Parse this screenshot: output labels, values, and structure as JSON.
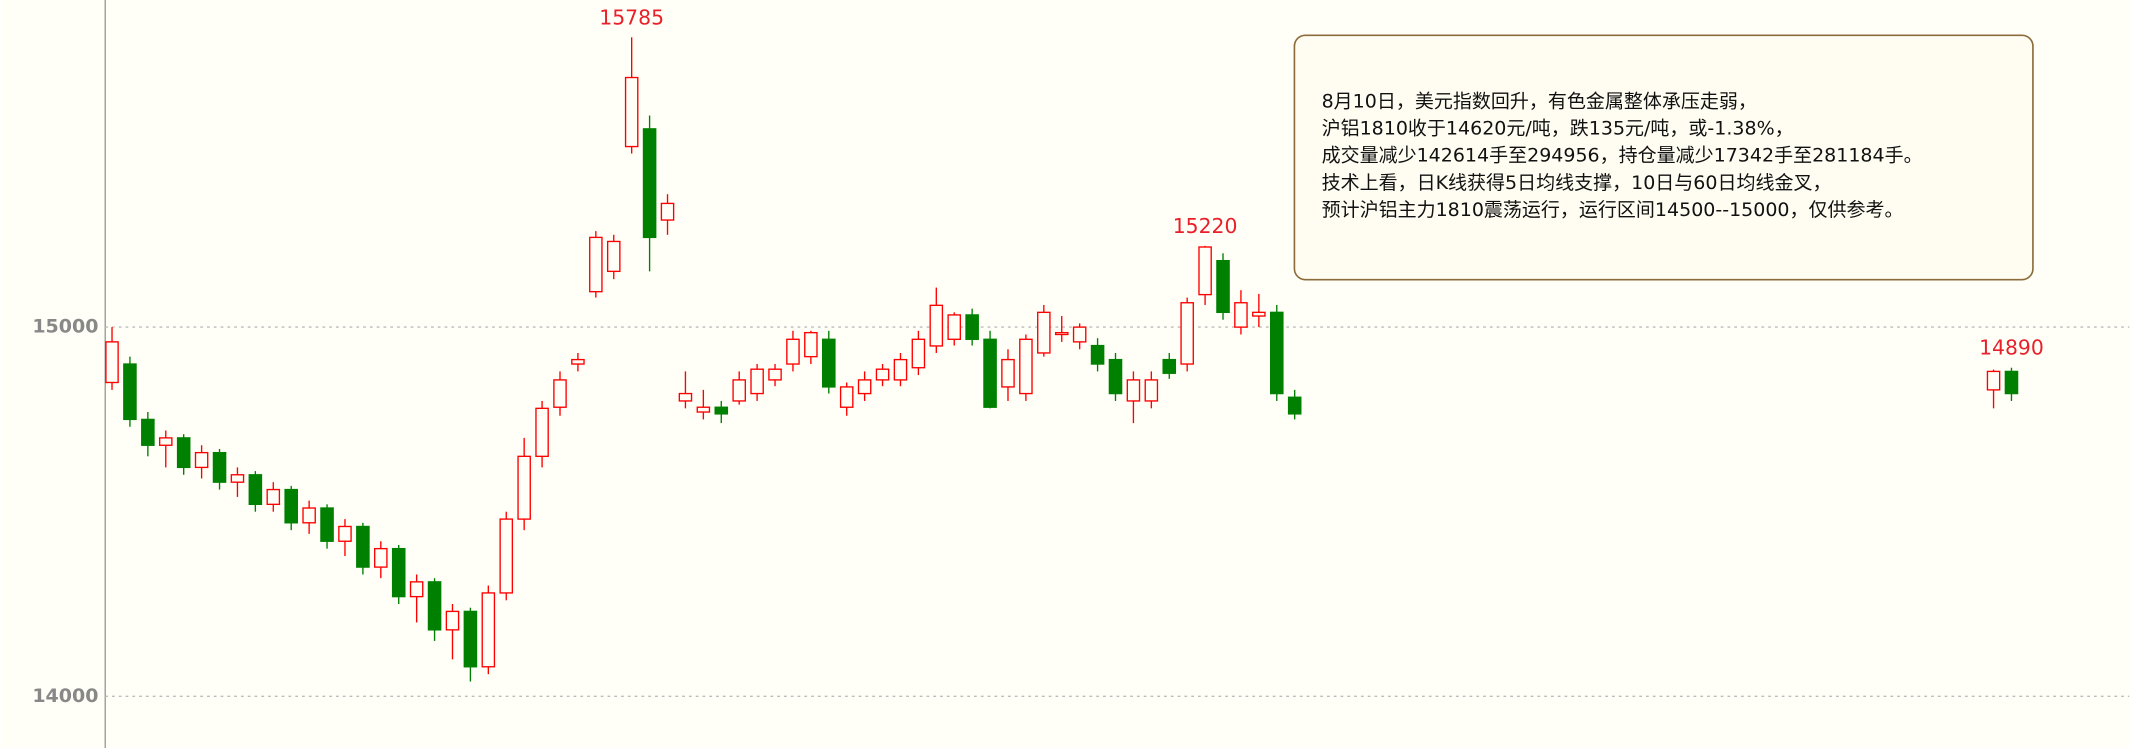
{
  "chart_data": {
    "type": "candlestick",
    "open": [
      14850,
      14900,
      14750,
      14680,
      14700,
      14620,
      14660,
      14580,
      14600,
      14520,
      14560,
      14470,
      14510,
      14420,
      14460,
      14350,
      14400,
      14270,
      14310,
      14180,
      14230,
      14080,
      14280,
      14480,
      14650,
      14783,
      14900,
      15096,
      15151,
      15489,
      15537,
      15290,
      14800,
      14770,
      14783,
      14800,
      14820,
      14857,
      14900,
      14920,
      14967,
      14783,
      14820,
      14857,
      14857,
      14890,
      14949,
      14967,
      15033,
      14967,
      14838,
      14820,
      14930,
      14980,
      14960,
      14950,
      14912,
      14800,
      14800,
      14912,
      14900,
      15088,
      15180,
      15000,
      15030,
      15040,
      14810,
      null,
      null,
      null,
      null,
      null,
      null,
      null,
      null,
      null,
      null,
      null,
      null,
      null,
      null,
      null,
      null,
      null,
      null,
      null,
      null,
      null,
      null,
      null,
      null,
      null,
      null,
      null,
      null,
      null,
      null,
      null,
      null,
      null,
      null,
      null,
      null,
      null,
      null,
      14830,
      14880
    ],
    "high": [
      15000,
      14920,
      14770,
      14720,
      14710,
      14680,
      14670,
      14620,
      14610,
      14580,
      14570,
      14530,
      14520,
      14480,
      14470,
      14420,
      14410,
      14330,
      14320,
      14250,
      14240,
      14300,
      14500,
      14700,
      14800,
      14880,
      14930,
      15260,
      15250,
      15785,
      15573,
      15360,
      14880,
      14830,
      14800,
      14880,
      14900,
      14900,
      14990,
      14990,
      14990,
      14850,
      14880,
      14900,
      14930,
      14990,
      15107,
      15040,
      15050,
      14990,
      14940,
      14980,
      15060,
      15030,
      15010,
      14970,
      14930,
      14880,
      14880,
      14930,
      15080,
      15220,
      15200,
      15100,
      15090,
      15060,
      14830,
      null,
      null,
      null,
      null,
      null,
      null,
      null,
      null,
      null,
      null,
      null,
      null,
      null,
      null,
      null,
      null,
      null,
      null,
      null,
      null,
      null,
      null,
      null,
      null,
      null,
      null,
      null,
      null,
      null,
      null,
      null,
      null,
      null,
      null,
      null,
      null,
      null,
      null,
      14885,
      14890
    ],
    "low": [
      14830,
      14730,
      14650,
      14620,
      14600,
      14590,
      14560,
      14540,
      14500,
      14500,
      14450,
      14440,
      14400,
      14380,
      14330,
      14320,
      14250,
      14200,
      14150,
      14100,
      14040,
      14060,
      14260,
      14450,
      14620,
      14760,
      14880,
      15080,
      15130,
      15470,
      15151,
      15250,
      14780,
      14750,
      14740,
      14790,
      14800,
      14840,
      14880,
      14900,
      14820,
      14760,
      14800,
      14840,
      14840,
      14870,
      14930,
      14950,
      14950,
      14780,
      14800,
      14800,
      14920,
      14960,
      14940,
      14880,
      14800,
      14740,
      14780,
      14860,
      14880,
      15060,
      15020,
      14980,
      15000,
      14800,
      14750,
      null,
      null,
      null,
      null,
      null,
      null,
      null,
      null,
      null,
      null,
      null,
      null,
      null,
      null,
      null,
      null,
      null,
      null,
      null,
      null,
      null,
      null,
      null,
      null,
      null,
      null,
      null,
      null,
      null,
      null,
      null,
      null,
      null,
      null,
      null,
      null,
      null,
      null,
      14780,
      14800
    ],
    "close": [
      14960,
      14750,
      14680,
      14700,
      14620,
      14660,
      14580,
      14600,
      14520,
      14560,
      14470,
      14510,
      14420,
      14460,
      14350,
      14400,
      14270,
      14310,
      14180,
      14230,
      14080,
      14280,
      14480,
      14650,
      14780,
      14857,
      14912,
      15243,
      15232,
      15676,
      15243,
      15335,
      14820,
      14783,
      14765,
      14857,
      14886,
      14886,
      14967,
      14985,
      14838,
      14838,
      14857,
      14886,
      14912,
      14967,
      15059,
      15033,
      14967,
      14783,
      14912,
      14967,
      15040,
      14985,
      15000,
      14900,
      14820,
      14857,
      14857,
      14875,
      15066,
      15217,
      15040,
      15066,
      15040,
      14820,
      14765,
      null,
      null,
      null,
      null,
      null,
      null,
      null,
      null,
      null,
      null,
      null,
      null,
      null,
      null,
      null,
      null,
      null,
      null,
      null,
      null,
      null,
      null,
      null,
      null,
      null,
      null,
      null,
      null,
      null,
      null,
      null,
      null,
      null,
      null,
      null,
      null,
      null,
      null,
      14880,
      14820
    ],
    "up_color": "#ff0000",
    "down_color": "#008000",
    "ylim": [
      13860,
      15886
    ],
    "yticks": [
      14000,
      15000
    ],
    "grid": true,
    "annotation": [
      "8月10日，美元指数回升，有色金属整体承压走弱，",
      "沪铝1810收于14620元/吨，跌135元/吨，或-1.38%，",
      "成交量减少142614手至294956，持仓量减少17342手至281184手。",
      "技术上看，日K线获得5日均线支撑，10日与60日均线金叉，",
      "预计沪铝主力1810震荡运行，运行区间14500--15000，仅供参考。"
    ]
  }
}
